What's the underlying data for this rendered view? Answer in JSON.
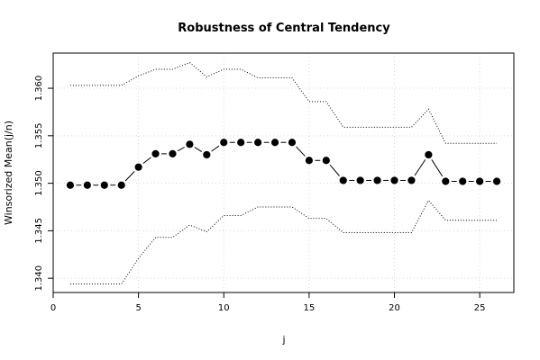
{
  "chart_data": {
    "type": "line",
    "title": "Robustness of Central Tendency",
    "xlabel": "j",
    "ylabel": "Winsorized Mean(j/n)",
    "xlim": [
      0,
      27
    ],
    "ylim": [
      1.3385,
      1.3637
    ],
    "xticks": [
      0,
      5,
      10,
      15,
      20,
      25
    ],
    "yticks": [
      1.34,
      1.345,
      1.35,
      1.355,
      1.36
    ],
    "xtick_labels": [
      "0",
      "5",
      "10",
      "15",
      "20",
      "25"
    ],
    "ytick_labels": [
      "1.340",
      "1.345",
      "1.350",
      "1.355",
      "1.360"
    ],
    "grid": true,
    "x": [
      1,
      2,
      3,
      4,
      5,
      6,
      7,
      8,
      9,
      10,
      11,
      12,
      13,
      14,
      15,
      16,
      17,
      18,
      19,
      20,
      21,
      22,
      23,
      24,
      25,
      26
    ],
    "series": [
      {
        "values": [
          1.3498,
          1.3498,
          1.3498,
          1.3498,
          1.3517,
          1.3531,
          1.3531,
          1.3541,
          1.353,
          1.3543,
          1.3543,
          1.3543,
          1.3543,
          1.3543,
          1.3524,
          1.3524,
          1.3503,
          1.3503,
          1.3503,
          1.3503,
          1.3503,
          1.353,
          1.3502,
          1.3502,
          1.3502,
          1.3502
        ],
        "style": "solid-points"
      },
      {
        "values": [
          1.3603,
          1.3603,
          1.3603,
          1.3603,
          1.3613,
          1.362,
          1.362,
          1.3627,
          1.3612,
          1.362,
          1.362,
          1.3611,
          1.3611,
          1.3611,
          1.3586,
          1.3586,
          1.3559,
          1.3559,
          1.3559,
          1.3559,
          1.3559,
          1.3578,
          1.3542,
          1.3542,
          1.3542,
          1.3542
        ],
        "style": "dotted-step"
      },
      {
        "values": [
          1.3394,
          1.3394,
          1.3394,
          1.3394,
          1.3421,
          1.3443,
          1.3443,
          1.3456,
          1.3449,
          1.3466,
          1.3466,
          1.3475,
          1.3475,
          1.3475,
          1.3463,
          1.3463,
          1.3448,
          1.3448,
          1.3448,
          1.3448,
          1.3448,
          1.3482,
          1.3461,
          1.3461,
          1.3461,
          1.3461
        ],
        "style": "dotted-step"
      }
    ]
  }
}
